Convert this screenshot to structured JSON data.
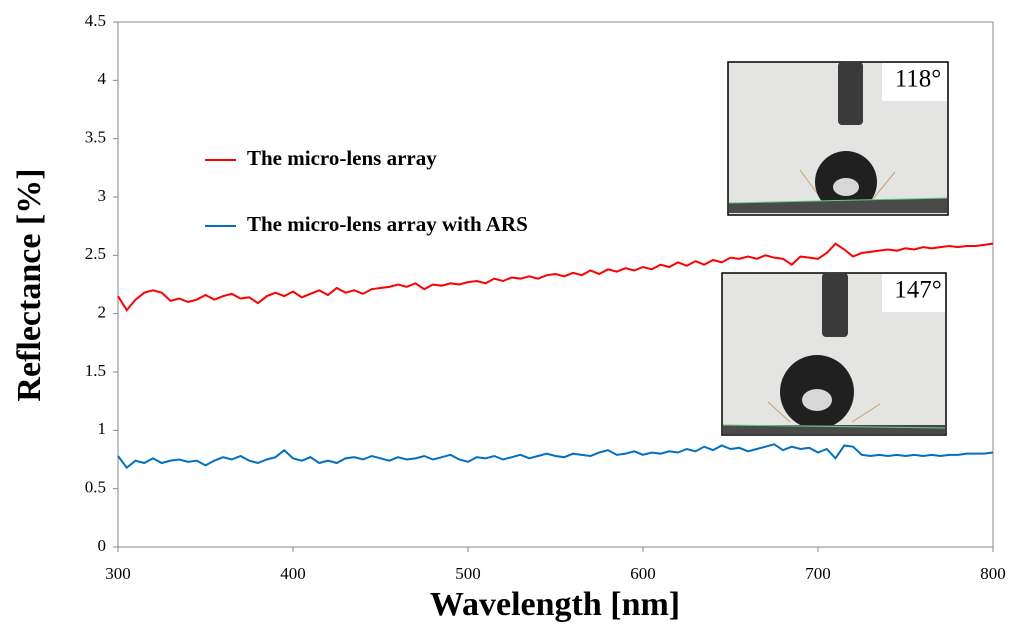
{
  "chart_data": {
    "type": "line",
    "xlabel": "Wavelength [nm]",
    "ylabel": "Reflectance [%]",
    "xlim": [
      300,
      800
    ],
    "xticks": [
      300,
      400,
      500,
      600,
      700,
      800
    ],
    "ylim": [
      0,
      4.5
    ],
    "yticks": [
      0,
      0.5,
      1,
      1.5,
      2,
      2.5,
      3,
      3.5,
      4,
      4.5
    ],
    "grid": false,
    "x": [
      300,
      305,
      310,
      315,
      320,
      325,
      330,
      335,
      340,
      345,
      350,
      355,
      360,
      365,
      370,
      375,
      380,
      385,
      390,
      395,
      400,
      405,
      410,
      415,
      420,
      425,
      430,
      435,
      440,
      445,
      450,
      455,
      460,
      465,
      470,
      475,
      480,
      485,
      490,
      495,
      500,
      505,
      510,
      515,
      520,
      525,
      530,
      535,
      540,
      545,
      550,
      555,
      560,
      565,
      570,
      575,
      580,
      585,
      590,
      595,
      600,
      605,
      610,
      615,
      620,
      625,
      630,
      635,
      640,
      645,
      650,
      655,
      660,
      665,
      670,
      675,
      680,
      685,
      690,
      695,
      700,
      705,
      710,
      715,
      720,
      725,
      730,
      735,
      740,
      745,
      750,
      755,
      760,
      765,
      770,
      775,
      780,
      785,
      790,
      795,
      800
    ],
    "series": [
      {
        "name": "The micro-lens array",
        "color": "#ff0000",
        "values": [
          2.15,
          2.03,
          2.12,
          2.18,
          2.2,
          2.18,
          2.11,
          2.13,
          2.1,
          2.12,
          2.16,
          2.12,
          2.15,
          2.17,
          2.13,
          2.14,
          2.09,
          2.15,
          2.18,
          2.15,
          2.19,
          2.14,
          2.17,
          2.2,
          2.16,
          2.22,
          2.18,
          2.2,
          2.17,
          2.21,
          2.22,
          2.23,
          2.25,
          2.23,
          2.26,
          2.21,
          2.25,
          2.24,
          2.26,
          2.25,
          2.27,
          2.28,
          2.26,
          2.3,
          2.28,
          2.31,
          2.3,
          2.32,
          2.3,
          2.33,
          2.34,
          2.32,
          2.35,
          2.33,
          2.37,
          2.34,
          2.38,
          2.36,
          2.39,
          2.37,
          2.4,
          2.38,
          2.42,
          2.4,
          2.44,
          2.41,
          2.45,
          2.42,
          2.46,
          2.44,
          2.48,
          2.47,
          2.49,
          2.47,
          2.5,
          2.48,
          2.47,
          2.42,
          2.49,
          2.48,
          2.47,
          2.52,
          2.6,
          2.55,
          2.49,
          2.52,
          2.53,
          2.54,
          2.55,
          2.54,
          2.56,
          2.55,
          2.57,
          2.56,
          2.57,
          2.58,
          2.57,
          2.58,
          2.58,
          2.59,
          2.6
        ]
      },
      {
        "name": "The micro-lens array with ARS",
        "color": "#0070c0",
        "values": [
          0.78,
          0.68,
          0.74,
          0.72,
          0.76,
          0.72,
          0.74,
          0.75,
          0.73,
          0.74,
          0.7,
          0.74,
          0.77,
          0.75,
          0.78,
          0.74,
          0.72,
          0.75,
          0.77,
          0.83,
          0.76,
          0.74,
          0.77,
          0.72,
          0.74,
          0.72,
          0.76,
          0.77,
          0.75,
          0.78,
          0.76,
          0.74,
          0.77,
          0.75,
          0.76,
          0.78,
          0.75,
          0.77,
          0.79,
          0.75,
          0.73,
          0.77,
          0.76,
          0.78,
          0.75,
          0.77,
          0.79,
          0.76,
          0.78,
          0.8,
          0.78,
          0.77,
          0.8,
          0.79,
          0.78,
          0.81,
          0.83,
          0.79,
          0.8,
          0.82,
          0.79,
          0.81,
          0.8,
          0.82,
          0.81,
          0.84,
          0.82,
          0.86,
          0.83,
          0.87,
          0.84,
          0.85,
          0.82,
          0.84,
          0.86,
          0.88,
          0.83,
          0.86,
          0.84,
          0.85,
          0.81,
          0.84,
          0.76,
          0.87,
          0.86,
          0.79,
          0.78,
          0.79,
          0.78,
          0.79,
          0.78,
          0.79,
          0.78,
          0.79,
          0.78,
          0.79,
          0.79,
          0.8,
          0.8,
          0.8,
          0.81
        ]
      }
    ],
    "insets": [
      {
        "label": "118°"
      },
      {
        "label": "147°"
      }
    ]
  }
}
